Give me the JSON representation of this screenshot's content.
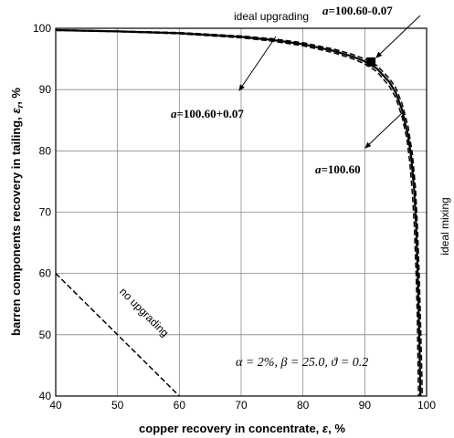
{
  "chart_data": {
    "type": "line",
    "xlabel_text": "copper recovery in concentrate, ",
    "xlabel_sym": "ε",
    "xlabel_unit": ", %",
    "ylabel_text": "barren components recovery in tailing, ",
    "ylabel_sym": "ε",
    "ylabel_sub": "r",
    "ylabel_unit": ", %",
    "xlim": [
      40,
      100
    ],
    "ylim": [
      40,
      100
    ],
    "xticks": [
      "40",
      "50",
      "60",
      "70",
      "80",
      "90",
      "100"
    ],
    "yticks": [
      "40",
      "50",
      "60",
      "70",
      "80",
      "90",
      "100"
    ],
    "grid": true,
    "series": [
      {
        "name": "a=100.60",
        "style": "solid",
        "x": [
          40,
          50,
          60,
          70,
          75,
          80,
          85,
          88,
          90,
          92,
          94,
          95,
          96,
          97,
          97.5,
          98,
          98.3,
          98.5,
          98.7,
          98.9,
          99.0
        ],
        "y": [
          99.7,
          99.5,
          99.2,
          98.6,
          98.1,
          97.4,
          96.3,
          95.4,
          94.6,
          93.4,
          91.2,
          89.5,
          86.8,
          82.5,
          79.0,
          73.5,
          68.0,
          62.0,
          55.0,
          46.0,
          40.0
        ]
      },
      {
        "name": "a=100.60+0.07",
        "style": "dashed",
        "x": [
          40,
          50,
          60,
          70,
          75,
          80,
          85,
          88,
          90,
          92,
          94,
          95,
          96,
          97,
          97.7,
          98.2,
          98.5,
          98.8,
          99.0,
          99.2,
          99.3
        ],
        "y": [
          99.75,
          99.55,
          99.3,
          98.75,
          98.3,
          97.65,
          96.6,
          95.75,
          95.0,
          93.9,
          91.8,
          90.3,
          87.8,
          84.0,
          79.5,
          74.0,
          68.0,
          60.0,
          53.0,
          45.0,
          40.0
        ]
      },
      {
        "name": "a=100.60-0.07",
        "style": "dashed",
        "x": [
          40,
          50,
          60,
          70,
          75,
          80,
          85,
          88,
          90,
          92,
          94,
          95,
          96,
          96.8,
          97.3,
          97.7,
          98.0,
          98.3,
          98.5,
          98.6,
          98.7
        ],
        "y": [
          99.65,
          99.45,
          99.1,
          98.45,
          97.9,
          97.15,
          96.0,
          95.05,
          94.2,
          92.9,
          90.5,
          88.7,
          85.7,
          82.0,
          78.0,
          73.0,
          68.0,
          60.0,
          53.0,
          46.0,
          40.0
        ]
      },
      {
        "name": "no upgrading",
        "style": "dashed",
        "x": [
          40,
          60
        ],
        "y": [
          60,
          40
        ]
      }
    ],
    "marker": {
      "x": 91,
      "y": 94.5,
      "shape": "square"
    },
    "annotations": {
      "ideal_upgrading": "ideal upgrading",
      "ideal_mixing": "ideal mixing",
      "no_upgrading": "no upgrading",
      "a_plus": "=100.60+0.07",
      "a_minus": "=100.60-0.07",
      "a_base": "=100.60",
      "a_sym": "a",
      "params": "α = 2%, β = 25.0, ϑ = 0.2"
    }
  }
}
